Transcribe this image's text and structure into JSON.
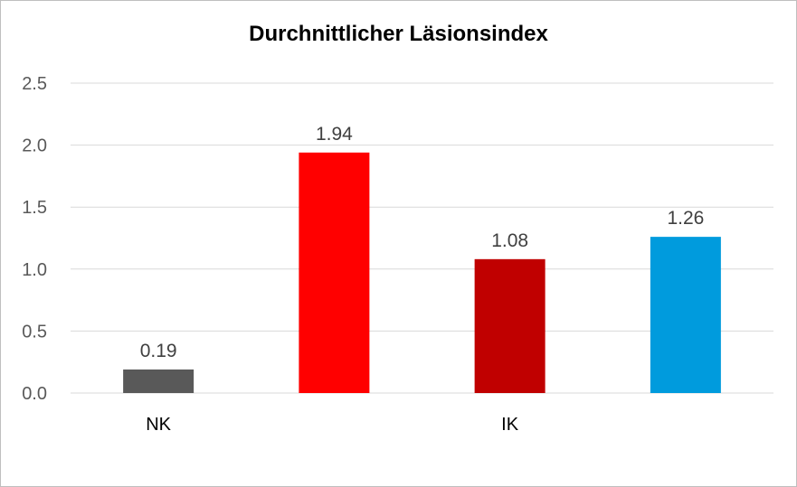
{
  "chart_data": {
    "type": "bar",
    "title": "Durchnittlicher Läsionsindex",
    "xlabel": "",
    "ylabel": "",
    "ylim": [
      0,
      2.5
    ],
    "yticks": [
      "0.0",
      "0.5",
      "1.0",
      "1.5",
      "2.0",
      "2.5"
    ],
    "grid": true,
    "legend": "none",
    "category_labels": [
      {
        "text": "NK",
        "bars": [
          0
        ]
      },
      {
        "text": "IK",
        "bars": [
          1,
          2,
          3
        ]
      }
    ],
    "bars": [
      {
        "value": 0.19,
        "label": "0.19",
        "color": "#595959"
      },
      {
        "value": 1.94,
        "label": "1.94",
        "color": "#ff0000"
      },
      {
        "value": 1.08,
        "label": "1.08",
        "color": "#c00000"
      },
      {
        "value": 1.26,
        "label": "1.26",
        "color": "#009bdd"
      }
    ]
  }
}
